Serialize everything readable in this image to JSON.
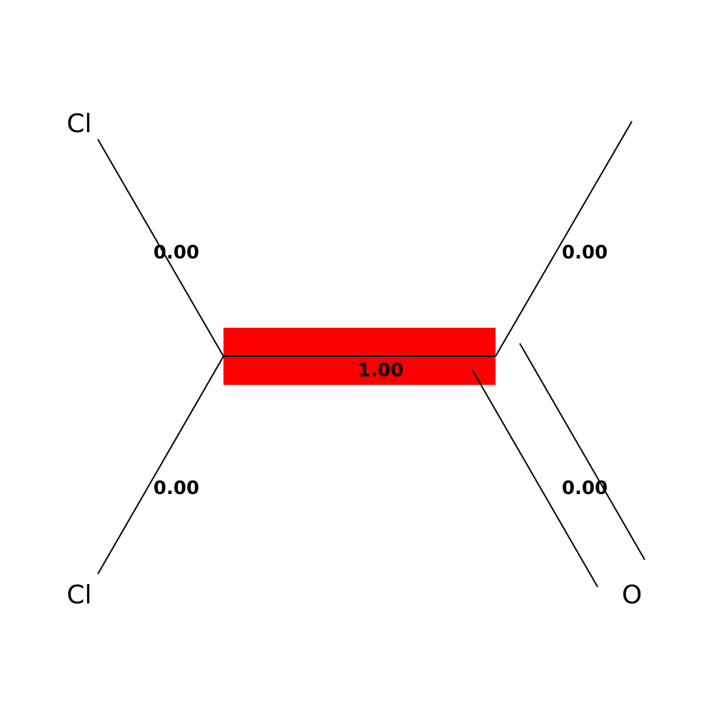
{
  "atoms": {
    "cl_top": "Cl",
    "cl_bottom": "Cl",
    "oxygen": "O"
  },
  "bond_values": {
    "cl_top_bond": "0.00",
    "cl_bottom_bond": "0.00",
    "methyl_bond": "0.00",
    "co_double_bond": "0.00",
    "cc_central_bond": "1.00"
  },
  "colors": {
    "highlight": "#ff0000",
    "line": "#000000",
    "background": "#ffffff"
  }
}
